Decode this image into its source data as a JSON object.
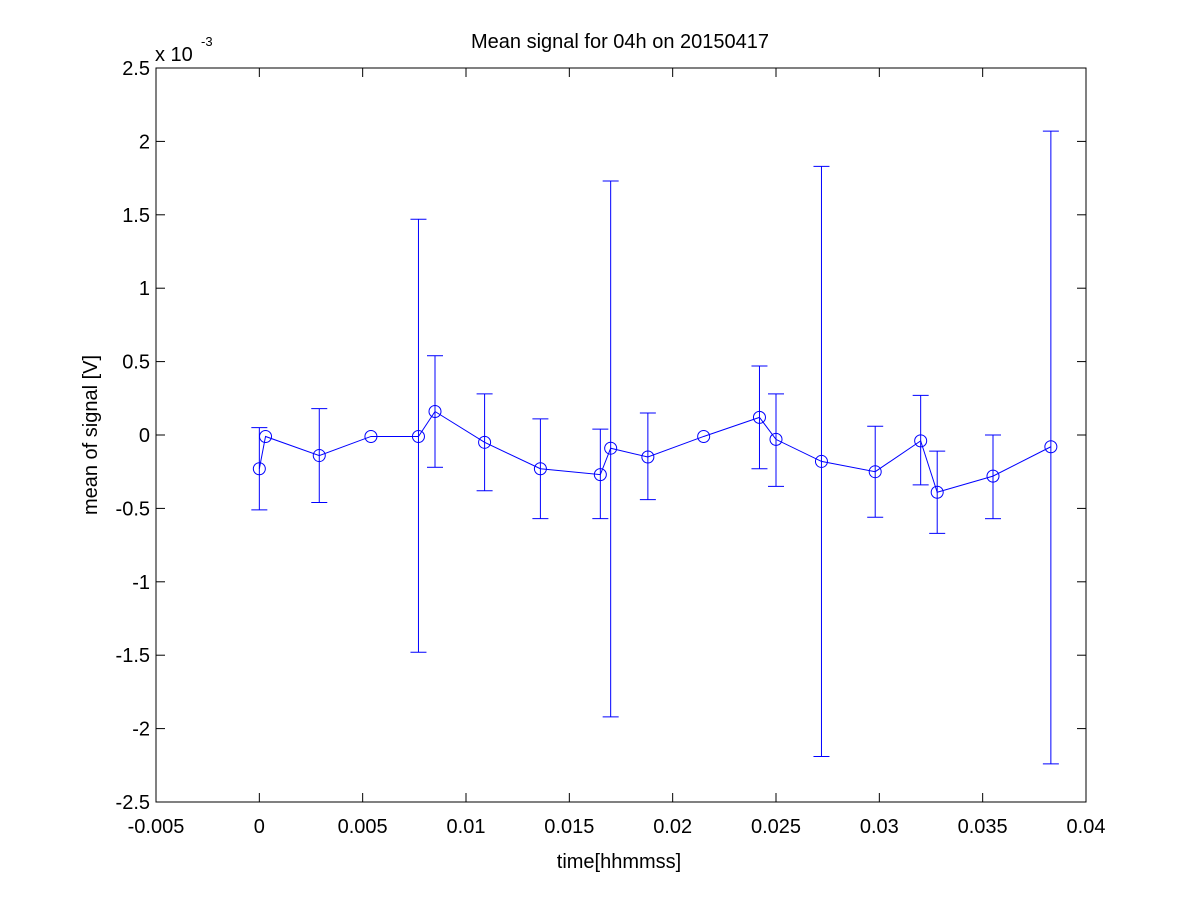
{
  "chart_data": {
    "type": "line",
    "title": "Mean signal for 04h on 20150417",
    "xlabel": "time[hhmmss]",
    "ylabel": "mean of signal [V]",
    "y_scale_prefix": "x 10",
    "y_scale_exponent": "-3",
    "xlim": [
      -0.005,
      0.04
    ],
    "ylim": [
      -2.5,
      2.5
    ],
    "x_ticks": [
      -0.005,
      0,
      0.005,
      0.01,
      0.015,
      0.02,
      0.025,
      0.03,
      0.035,
      0.04
    ],
    "x_tick_labels": [
      "-0.005",
      "0",
      "0.005",
      "0.01",
      "0.015",
      "0.02",
      "0.025",
      "0.03",
      "0.035",
      "0.04"
    ],
    "y_ticks": [
      -2.5,
      -2,
      -1.5,
      -1,
      -0.5,
      0,
      0.5,
      1,
      1.5,
      2,
      2.5
    ],
    "y_tick_labels": [
      "-2.5",
      "-2",
      "-1.5",
      "-1",
      "-0.5",
      "0",
      "0.5",
      "1",
      "1.5",
      "2",
      "2.5"
    ],
    "grid": false,
    "color": "#0000ff",
    "marker": "open-circle",
    "series": [
      {
        "points": [
          {
            "x": 0.0,
            "y": -0.23,
            "lo": -0.51,
            "hi": 0.05
          },
          {
            "x": 0.0003,
            "y": -0.01,
            "lo": null,
            "hi": null
          },
          {
            "x": 0.0029,
            "y": -0.14,
            "lo": -0.46,
            "hi": 0.18
          },
          {
            "x": 0.0054,
            "y": -0.01,
            "lo": null,
            "hi": null
          },
          {
            "x": 0.0077,
            "y": -0.01,
            "lo": -1.48,
            "hi": 1.47
          },
          {
            "x": 0.0085,
            "y": 0.16,
            "lo": -0.22,
            "hi": 0.54
          },
          {
            "x": 0.0109,
            "y": -0.05,
            "lo": -0.38,
            "hi": 0.28
          },
          {
            "x": 0.0136,
            "y": -0.23,
            "lo": -0.57,
            "hi": 0.11
          },
          {
            "x": 0.0165,
            "y": -0.27,
            "lo": -0.57,
            "hi": 0.04
          },
          {
            "x": 0.017,
            "y": -0.09,
            "lo": -1.92,
            "hi": 1.73
          },
          {
            "x": 0.0188,
            "y": -0.15,
            "lo": -0.44,
            "hi": 0.15
          },
          {
            "x": 0.0215,
            "y": -0.01,
            "lo": null,
            "hi": null
          },
          {
            "x": 0.0242,
            "y": 0.12,
            "lo": -0.23,
            "hi": 0.47
          },
          {
            "x": 0.025,
            "y": -0.03,
            "lo": -0.35,
            "hi": 0.28
          },
          {
            "x": 0.0272,
            "y": -0.18,
            "lo": -2.19,
            "hi": 1.83
          },
          {
            "x": 0.0298,
            "y": -0.25,
            "lo": -0.56,
            "hi": 0.06
          },
          {
            "x": 0.032,
            "y": -0.04,
            "lo": -0.34,
            "hi": 0.27
          },
          {
            "x": 0.0328,
            "y": -0.39,
            "lo": -0.67,
            "hi": -0.11
          },
          {
            "x": 0.0355,
            "y": -0.28,
            "lo": -0.57,
            "hi": 0.0
          },
          {
            "x": 0.0383,
            "y": -0.08,
            "lo": -2.24,
            "hi": 2.07
          }
        ]
      }
    ]
  }
}
